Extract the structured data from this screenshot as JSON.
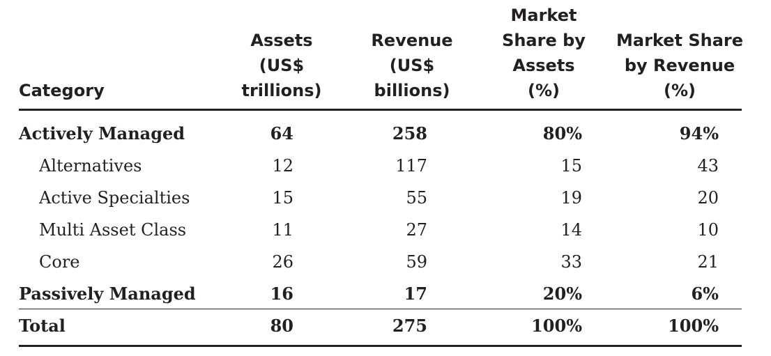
{
  "table": {
    "headers": [
      "Category",
      "Assets\n(US$\ntrillions)",
      "Revenue\n(US$\nbillions)",
      "Market\nShare by\nAssets\n(%)",
      "Market Share\nby Revenue\n(%)"
    ],
    "rows": [
      {
        "label": "Actively Managed",
        "assets": "64",
        "revenue": "258",
        "share_assets": "80%",
        "share_revenue": "94%"
      },
      {
        "label": "Alternatives",
        "assets": "12",
        "revenue": "117",
        "share_assets": "15",
        "share_revenue": "43"
      },
      {
        "label": "Active Specialties",
        "assets": "15",
        "revenue": "55",
        "share_assets": "19",
        "share_revenue": "20"
      },
      {
        "label": "Multi Asset Class",
        "assets": "11",
        "revenue": "27",
        "share_assets": "14",
        "share_revenue": "10"
      },
      {
        "label": "Core",
        "assets": "26",
        "revenue": "59",
        "share_assets": "33",
        "share_revenue": "21"
      },
      {
        "label": "Passively Managed",
        "assets": "16",
        "revenue": "17",
        "share_assets": "20%",
        "share_revenue": "6%"
      },
      {
        "label": "Total",
        "assets": "80",
        "revenue": "275",
        "share_assets": "100%",
        "share_revenue": "100%"
      }
    ]
  }
}
